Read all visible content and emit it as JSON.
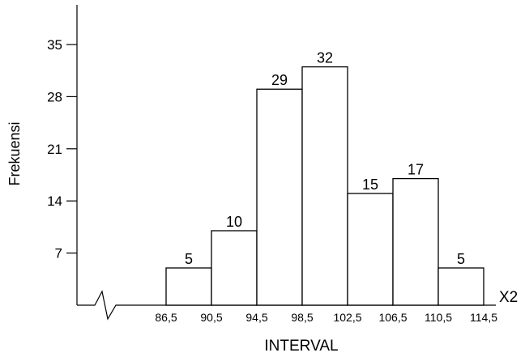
{
  "chart_data": {
    "type": "bar",
    "title": "",
    "xlabel": "INTERVAL",
    "ylabel": "Frekuensi",
    "x_axis_end_label": "X2",
    "bins": [
      "86,5",
      "90,5",
      "94,5",
      "98,5",
      "102,5",
      "106,5",
      "110,5",
      "114,5"
    ],
    "categories": [
      "86,5–90,5",
      "90,5–94,5",
      "94,5–98,5",
      "98,5–102,5",
      "102,5–106,5",
      "106,5–110,5",
      "110,5–114,5"
    ],
    "values": [
      5,
      10,
      29,
      32,
      15,
      17,
      5
    ],
    "data_labels": [
      "5",
      "10",
      "29",
      "32",
      "15",
      "17",
      "5"
    ],
    "y_ticks": [
      7,
      14,
      21,
      28,
      35
    ],
    "y_tick_labels": [
      "7",
      "14",
      "21",
      "28",
      "35"
    ],
    "ylim": [
      0,
      39
    ],
    "axis_break": true,
    "grid": false,
    "legend": "none",
    "bar_fill": "#ffffff",
    "bar_stroke": "#000000"
  }
}
